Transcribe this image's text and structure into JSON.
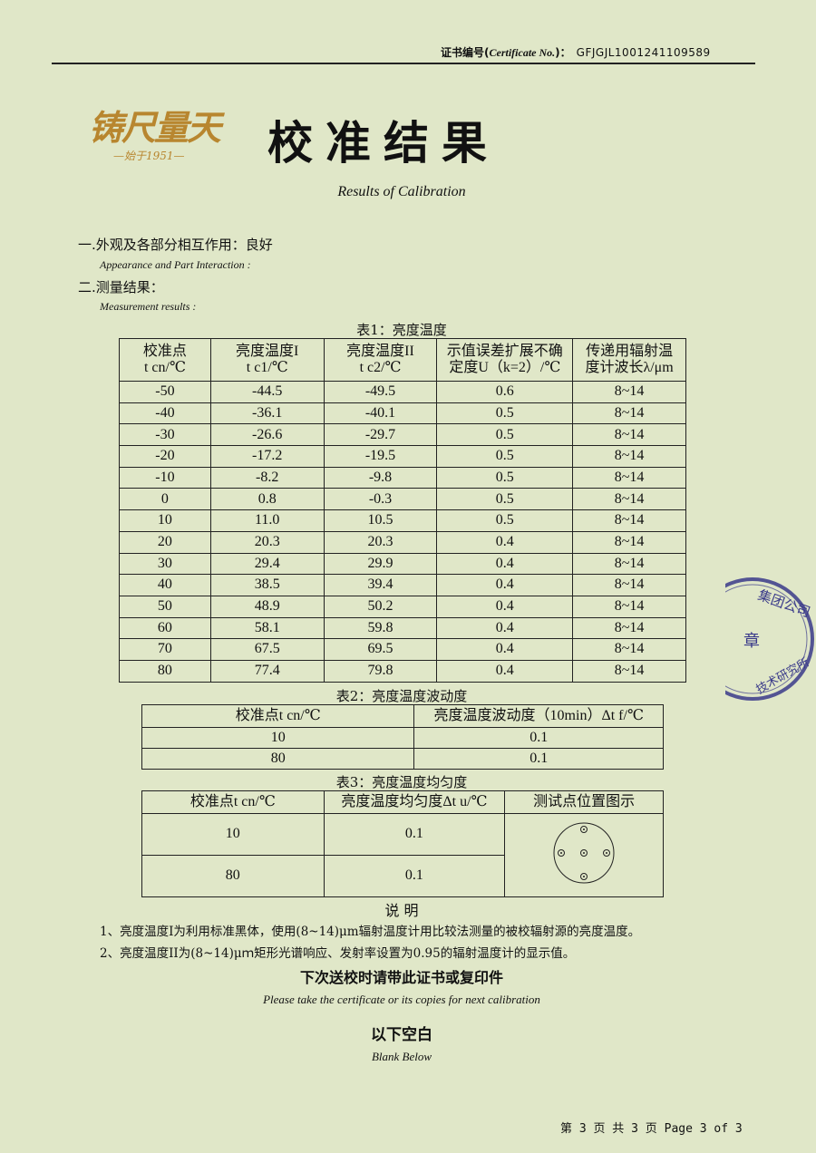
{
  "header": {
    "cert_label_cn": "证书编号",
    "cert_label_en": "Certificate No.",
    "cert_no": "GFJGJL1001241109589"
  },
  "logo": {
    "text": "铸尺量天",
    "since": "—始于1951—"
  },
  "title": "校准结果",
  "subtitle": "Results of Calibration",
  "section1": {
    "label": "一.外观及各部分相互作用：良好",
    "en": "Appearance and Part Interaction :"
  },
  "section2": {
    "label": "二.测量结果：",
    "en": "Measurement results :"
  },
  "table1": {
    "caption": "表1：亮度温度",
    "headers": [
      [
        "校准点",
        "t cn/℃"
      ],
      [
        "亮度温度I",
        "t c1/℃"
      ],
      [
        "亮度温度II",
        "t c2/℃"
      ],
      [
        "示值误差扩展不确",
        "定度U（k=2）/℃"
      ],
      [
        "传递用辐射温",
        "度计波长λ/μm"
      ]
    ],
    "rows": [
      [
        "-50",
        "-44.5",
        "-49.5",
        "0.6",
        "8~14"
      ],
      [
        "-40",
        "-36.1",
        "-40.1",
        "0.5",
        "8~14"
      ],
      [
        "-30",
        "-26.6",
        "-29.7",
        "0.5",
        "8~14"
      ],
      [
        "-20",
        "-17.2",
        "-19.5",
        "0.5",
        "8~14"
      ],
      [
        "-10",
        "-8.2",
        "-9.8",
        "0.5",
        "8~14"
      ],
      [
        "0",
        "0.8",
        "-0.3",
        "0.5",
        "8~14"
      ],
      [
        "10",
        "11.0",
        "10.5",
        "0.5",
        "8~14"
      ],
      [
        "20",
        "20.3",
        "20.3",
        "0.4",
        "8~14"
      ],
      [
        "30",
        "29.4",
        "29.9",
        "0.4",
        "8~14"
      ],
      [
        "40",
        "38.5",
        "39.4",
        "0.4",
        "8~14"
      ],
      [
        "50",
        "48.9",
        "50.2",
        "0.4",
        "8~14"
      ],
      [
        "60",
        "58.1",
        "59.8",
        "0.4",
        "8~14"
      ],
      [
        "70",
        "67.5",
        "69.5",
        "0.4",
        "8~14"
      ],
      [
        "80",
        "77.4",
        "79.8",
        "0.4",
        "8~14"
      ]
    ]
  },
  "table2": {
    "caption": "表2：亮度温度波动度",
    "headers": [
      "校准点t cn/℃",
      "亮度温度波动度（10min）Δt f/℃"
    ],
    "rows": [
      [
        "10",
        "0.1"
      ],
      [
        "80",
        "0.1"
      ]
    ]
  },
  "table3": {
    "caption": "表3：亮度温度均匀度",
    "headers": [
      "校准点t cn/℃",
      "亮度温度均匀度Δt u/℃",
      "测试点位置图示"
    ],
    "rows": [
      [
        "10",
        "0.1"
      ],
      [
        "80",
        "0.1"
      ]
    ]
  },
  "notes": {
    "title": "说 明",
    "items": [
      "1、亮度温度I为利用标准黑体，使用(8~14)μm辐射温度计用比较法测量的被校辐射源的亮度温度。",
      "2、亮度温度II为(8~14)μｍ矩形光谱响应、发射率设置为0.95的辐射温度计的显示值。"
    ]
  },
  "reminder": {
    "cn": "下次送校时请带此证书或复印件",
    "en": "Please take the certificate or its copies for next calibration"
  },
  "blank": {
    "cn": "以下空白",
    "en": "Blank Below"
  },
  "stamp": {
    "text1": "集团公司",
    "text2": "章",
    "text3": "技术研究所"
  },
  "footer": "第 3 页 共 3 页  Page 3 of 3"
}
